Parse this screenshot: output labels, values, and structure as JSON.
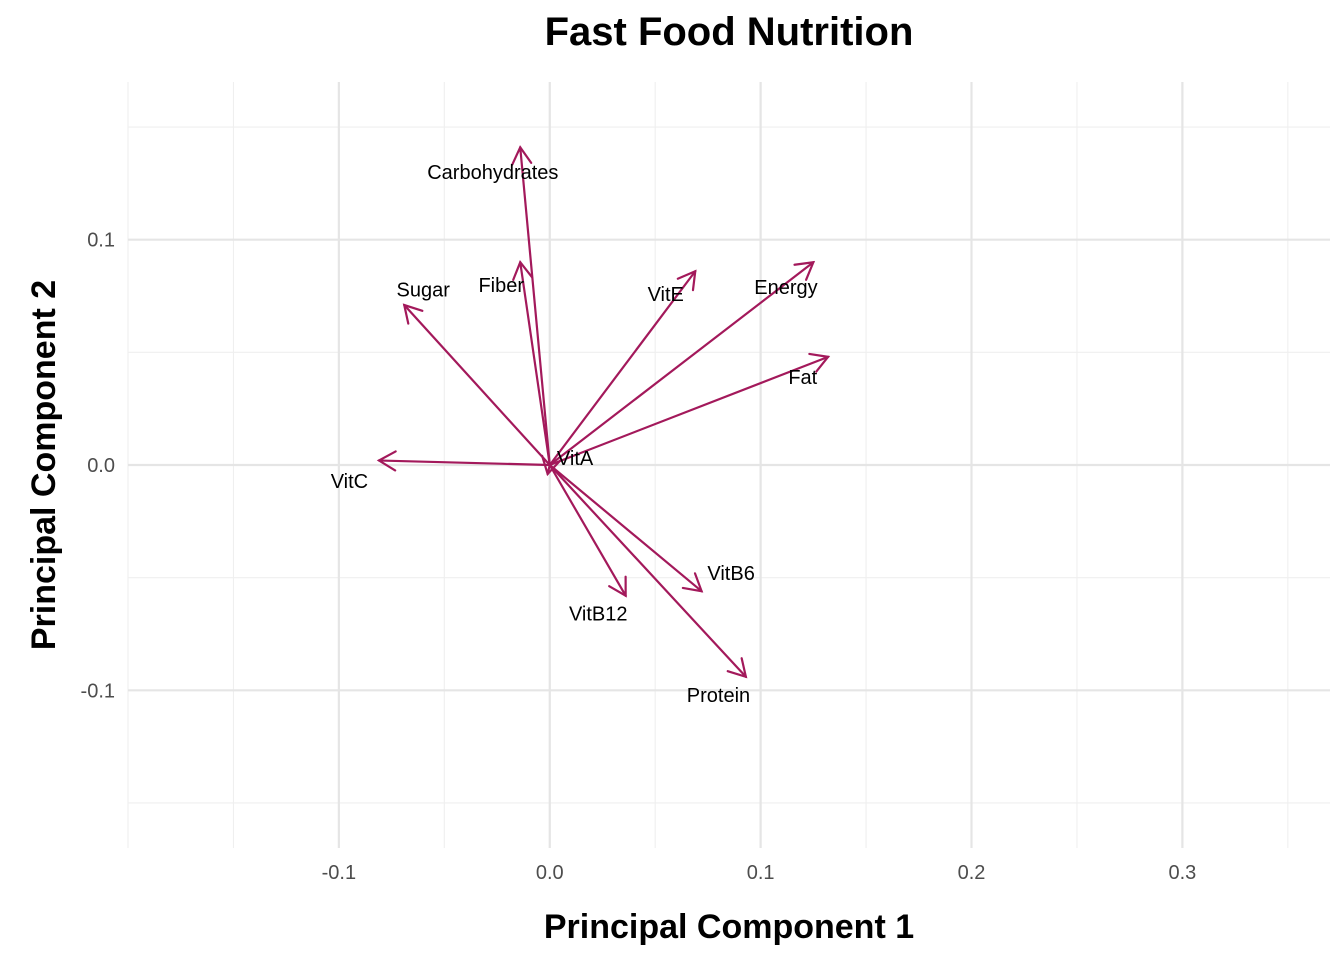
{
  "chart_data": {
    "type": "scatter",
    "subtype": "pca-biplot-loadings",
    "title": "Fast Food Nutrition",
    "xlabel": "Principal Component 1",
    "ylabel": "Principal Component 2",
    "xlim": [
      -0.2,
      0.37
    ],
    "ylim": [
      -0.17,
      0.17
    ],
    "x_ticks": [
      -0.1,
      0.0,
      0.1,
      0.2,
      0.3
    ],
    "x_tick_labels": [
      "-0.1",
      "0.0",
      "0.1",
      "0.2",
      "0.3"
    ],
    "y_ticks": [
      -0.1,
      0.0,
      0.1
    ],
    "y_tick_labels": [
      "-0.1",
      "0.0",
      "0.1"
    ],
    "grid": true,
    "arrow_color": "#a3195b",
    "vectors": [
      {
        "label": "Carbohydrates",
        "x": -0.014,
        "y": 0.141,
        "label_x": -0.027,
        "label_y": 0.13
      },
      {
        "label": "Fiber",
        "x": -0.014,
        "y": 0.09,
        "label_x": -0.023,
        "label_y": 0.08
      },
      {
        "label": "Sugar",
        "x": -0.069,
        "y": 0.071,
        "label_x": -0.06,
        "label_y": 0.078
      },
      {
        "label": "VitE",
        "x": 0.069,
        "y": 0.086,
        "label_x": 0.055,
        "label_y": 0.076
      },
      {
        "label": "Energy",
        "x": 0.125,
        "y": 0.09,
        "label_x": 0.112,
        "label_y": 0.079
      },
      {
        "label": "Fat",
        "x": 0.132,
        "y": 0.048,
        "label_x": 0.12,
        "label_y": 0.039
      },
      {
        "label": "VitA",
        "x": -0.001,
        "y": -0.004,
        "label_x": 0.012,
        "label_y": 0.003
      },
      {
        "label": "VitC",
        "x": -0.081,
        "y": 0.002,
        "label_x": -0.095,
        "label_y": -0.007
      },
      {
        "label": "VitB6",
        "x": 0.072,
        "y": -0.056,
        "label_x": 0.086,
        "label_y": -0.048
      },
      {
        "label": "VitB12",
        "x": 0.036,
        "y": -0.058,
        "label_x": 0.023,
        "label_y": -0.066
      },
      {
        "label": "Protein",
        "x": 0.093,
        "y": -0.094,
        "label_x": 0.08,
        "label_y": -0.102
      }
    ]
  }
}
